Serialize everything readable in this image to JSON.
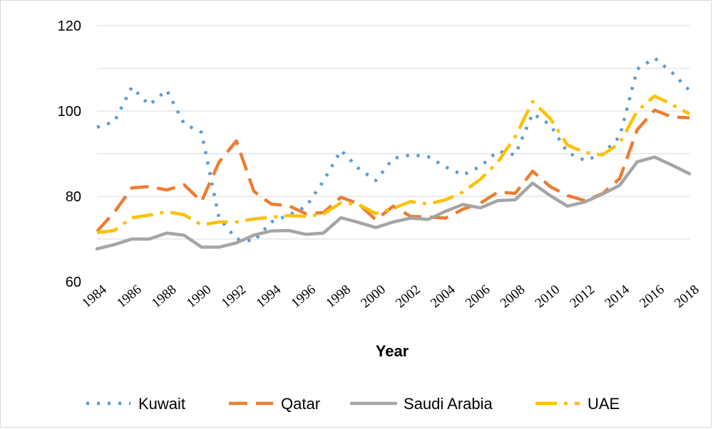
{
  "chart_data": {
    "type": "line",
    "title": "",
    "xlabel": "Year",
    "ylabel": "",
    "ylim": [
      60,
      120
    ],
    "y_ticks": [
      60,
      80,
      100,
      120
    ],
    "x": [
      1984,
      1985,
      1986,
      1987,
      1988,
      1989,
      1990,
      1991,
      1992,
      1993,
      1994,
      1995,
      1996,
      1997,
      1998,
      1999,
      2000,
      2001,
      2002,
      2003,
      2004,
      2005,
      2006,
      2007,
      2008,
      2009,
      2010,
      2011,
      2012,
      2013,
      2014,
      2015,
      2016,
      2017,
      2018
    ],
    "x_tick_labels": [
      "1984",
      "1986",
      "1988",
      "1990",
      "1992",
      "1994",
      "1996",
      "1998",
      "2000",
      "2002",
      "2004",
      "2006",
      "2008",
      "2010",
      "2012",
      "2014",
      "2016",
      "2018"
    ],
    "series": [
      {
        "name": "Kuwait",
        "color": "#5b9bd5",
        "dash": "dotted",
        "values": [
          96.2,
          97.5,
          105.6,
          101.4,
          104.9,
          97,
          95,
          75,
          70,
          69.5,
          74,
          75.6,
          77.6,
          83.6,
          90.8,
          86.6,
          83.7,
          88.9,
          89.7,
          89.3,
          86.9,
          85,
          87,
          90.6,
          89.7,
          99.4,
          96.8,
          90.3,
          88.4,
          89.9,
          94,
          109.8,
          112.4,
          109,
          104.8
        ]
      },
      {
        "name": "Qatar",
        "color": "#ed7d31",
        "dash": "dashed",
        "values": [
          71.8,
          76.3,
          82,
          82.3,
          81.5,
          82.7,
          78.8,
          88,
          93,
          81.2,
          78.2,
          77.8,
          75.9,
          76.2,
          79.8,
          78.3,
          74.5,
          77.7,
          75.3,
          75.2,
          74.9,
          77,
          78.4,
          81,
          80.7,
          85.9,
          82.3,
          80.2,
          79,
          80.6,
          84.2,
          95.6,
          100.2,
          98.6,
          98.4
        ]
      },
      {
        "name": "Saudi Arabia",
        "color": "#a5a5a5",
        "dash": "solid",
        "values": [
          67.7,
          68.7,
          70,
          70,
          71.4,
          70.9,
          68.1,
          68.1,
          69.1,
          70.9,
          71.9,
          72,
          71.1,
          71.4,
          75,
          73.9,
          72.7,
          74,
          74.9,
          74.6,
          76.5,
          78.1,
          77.3,
          79,
          79.2,
          83.1,
          80.2,
          77.7,
          78.7,
          80.5,
          82.6,
          88.1,
          89.2,
          87.3,
          85.3
        ]
      },
      {
        "name": "UAE",
        "color": "#ffc000",
        "dash": "dashdot",
        "values": [
          71.5,
          72,
          75,
          75.6,
          76.4,
          75.7,
          73.3,
          74,
          74,
          74.7,
          75.1,
          75.5,
          75.3,
          75.9,
          78.5,
          78.1,
          76,
          77.2,
          78.8,
          78.2,
          79.2,
          81,
          84,
          88,
          94,
          102.2,
          98.3,
          92,
          90.3,
          89.7,
          92.5,
          100,
          103.5,
          101.5,
          99.3
        ]
      }
    ],
    "legend": "bottom"
  }
}
